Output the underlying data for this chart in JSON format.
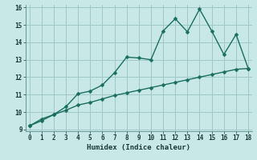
{
  "xlabel": "Humidex (Indice chaleur)",
  "bg_color": "#c8e8e8",
  "grid_color": "#a0c8c8",
  "line_color": "#1a6e5e",
  "x_data": [
    0,
    1,
    2,
    3,
    4,
    5,
    6,
    7,
    8,
    9,
    10,
    11,
    12,
    13,
    14,
    15,
    16,
    17,
    18
  ],
  "y_jagged": [
    9.2,
    9.6,
    9.85,
    10.3,
    11.05,
    11.2,
    11.55,
    12.25,
    13.15,
    13.1,
    13.0,
    14.65,
    15.35,
    14.6,
    15.9,
    14.65,
    13.3,
    14.45,
    12.5
  ],
  "y_linear": [
    9.2,
    9.5,
    9.85,
    10.1,
    10.4,
    10.55,
    10.75,
    10.95,
    11.1,
    11.25,
    11.4,
    11.55,
    11.7,
    11.85,
    12.0,
    12.15,
    12.3,
    12.45,
    12.5
  ],
  "ylim_min": 9,
  "ylim_max": 16,
  "xlim_min": 0,
  "xlim_max": 18,
  "yticks": [
    9,
    10,
    11,
    12,
    13,
    14,
    15,
    16
  ],
  "xticks": [
    0,
    1,
    2,
    3,
    4,
    5,
    6,
    7,
    8,
    9,
    10,
    11,
    12,
    13,
    14,
    15,
    16,
    17,
    18
  ],
  "markersize": 2.5,
  "linewidth": 1.0,
  "tick_fontsize": 5.5,
  "xlabel_fontsize": 6.5
}
